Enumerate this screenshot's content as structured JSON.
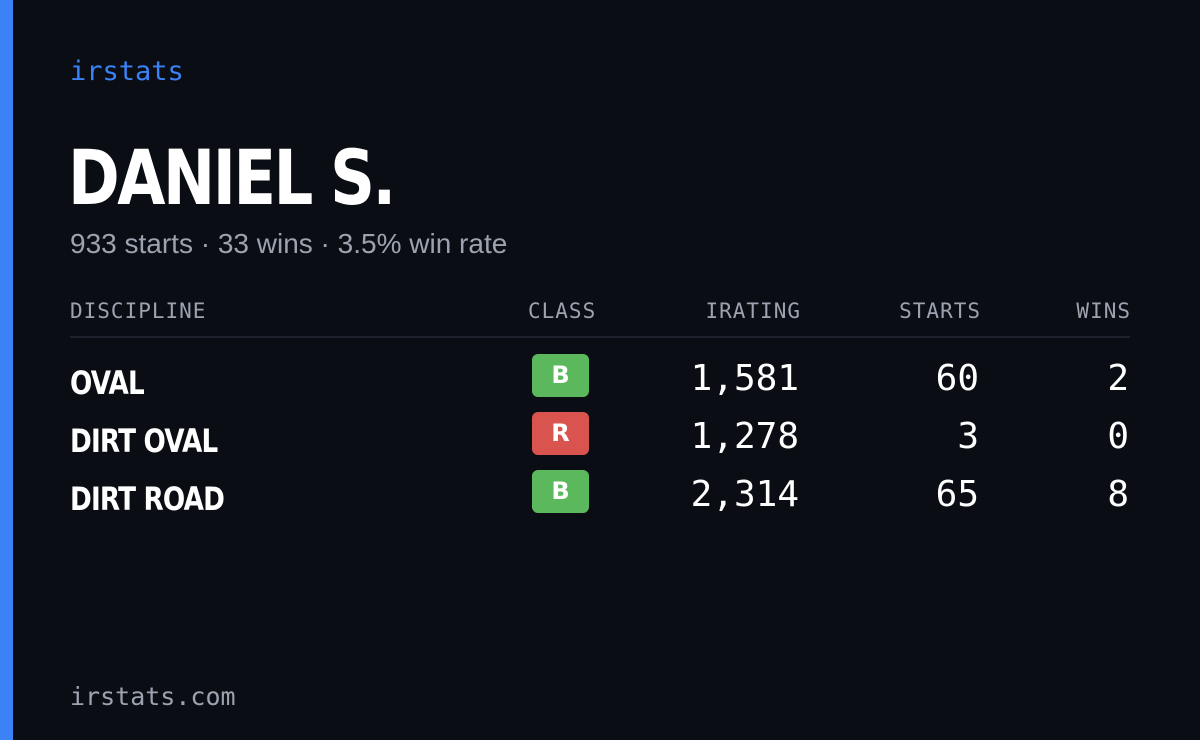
{
  "brand": "irstats",
  "player": {
    "name": "DANIEL S.",
    "summary": "933 starts · 33 wins · 3.5% win rate"
  },
  "table": {
    "headers": {
      "discipline": "DISCIPLINE",
      "class": "CLASS",
      "irating": "IRATING",
      "starts": "STARTS",
      "wins": "WINS"
    },
    "rows": [
      {
        "discipline": "OVAL",
        "class": "B",
        "class_color": "#5cb85c",
        "irating": "1,581",
        "starts": "60",
        "wins": "2"
      },
      {
        "discipline": "DIRT OVAL",
        "class": "R",
        "class_color": "#d9534f",
        "irating": "1,278",
        "starts": "3",
        "wins": "0"
      },
      {
        "discipline": "DIRT ROAD",
        "class": "B",
        "class_color": "#5cb85c",
        "irating": "2,314",
        "starts": "65",
        "wins": "8"
      }
    ]
  },
  "footer": "irstats.com",
  "colors": {
    "accent": "#3b82f6",
    "background": "#0a0d14",
    "muted_text": "#9ca3af",
    "class_b": "#5cb85c",
    "class_r": "#d9534f"
  }
}
